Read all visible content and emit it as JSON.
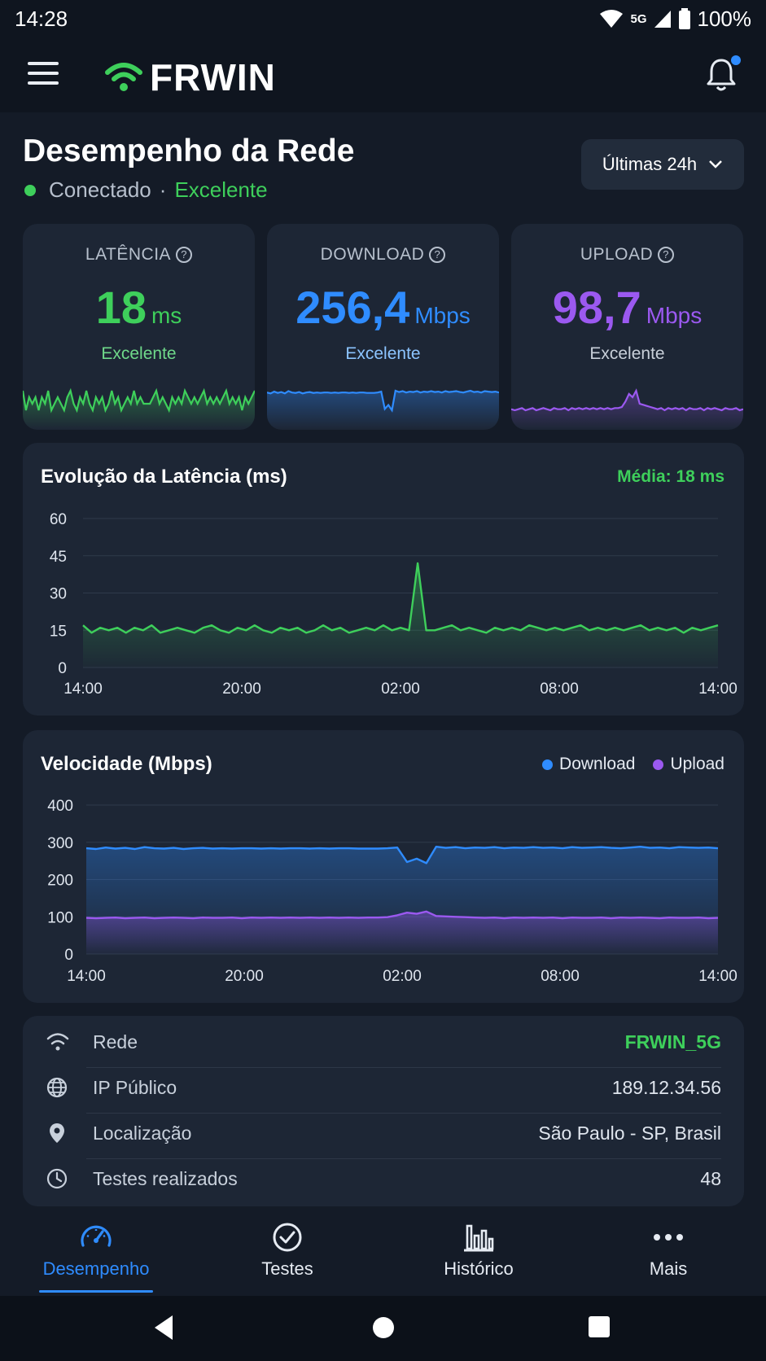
{
  "status_bar": {
    "time": "14:28",
    "network": "5G",
    "battery": "100%"
  },
  "app": {
    "name": "FRWIN"
  },
  "page": {
    "title": "Desempenho da Rede",
    "connection_status": "Conectado",
    "separator": "·",
    "connection_quality": "Excelente",
    "time_range": "Últimas 24h"
  },
  "metrics": [
    {
      "label": "LATÊNCIA",
      "value": "18",
      "unit": "ms",
      "quality": "Excelente",
      "color": "#3ecf5b"
    },
    {
      "label": "DOWNLOAD",
      "value": "256,4",
      "unit": "Mbps",
      "quality": "Excelente",
      "color": "#2f8cff"
    },
    {
      "label": "UPLOAD",
      "value": "98,7",
      "unit": "Mbps",
      "quality": "Excelente",
      "color": "#9b59f0"
    }
  ],
  "latency_chart": {
    "title": "Evolução da Latência (ms)",
    "average_label": "Média: 18 ms",
    "color": "#3ecf5b"
  },
  "speed_chart": {
    "title": "Velocidade (Mbps)",
    "legend_download": "Download",
    "legend_upload": "Upload",
    "download_color": "#2f8cff",
    "upload_color": "#9b59f0"
  },
  "chart_data": [
    {
      "type": "area",
      "title": "Evolução da Latência (ms)",
      "x_ticks": [
        "14:00",
        "20:00",
        "02:00",
        "08:00",
        "14:00"
      ],
      "y_ticks": [
        0,
        15,
        30,
        45,
        60
      ],
      "ylim": [
        0,
        60
      ],
      "grid": true,
      "series": [
        {
          "values": [
            17,
            14,
            16,
            15,
            16,
            14,
            16,
            15,
            17,
            14,
            15,
            16,
            15,
            14,
            16,
            17,
            15,
            14,
            16,
            15,
            17,
            15,
            14,
            16,
            15,
            16,
            14,
            15,
            17,
            15,
            16,
            14,
            15,
            16,
            15,
            17,
            15,
            16,
            15,
            42,
            15,
            15,
            16,
            17,
            15,
            16,
            15,
            14,
            16,
            15,
            16,
            15,
            17,
            16,
            15,
            16,
            15,
            16,
            17,
            15,
            16,
            15,
            16,
            15,
            16,
            17,
            15,
            16,
            15,
            16,
            14,
            16,
            15,
            16,
            17
          ]
        }
      ]
    },
    {
      "type": "area",
      "title": "Velocidade (Mbps)",
      "x_ticks": [
        "14:00",
        "20:00",
        "02:00",
        "08:00",
        "14:00"
      ],
      "y_ticks": [
        0,
        100,
        200,
        300,
        400
      ],
      "ylim": [
        0,
        400
      ],
      "grid": true,
      "series": [
        {
          "name": "Download",
          "values": [
            284,
            282,
            286,
            283,
            285,
            282,
            287,
            284,
            283,
            285,
            282,
            284,
            285,
            283,
            284,
            283,
            284,
            284,
            283,
            284,
            283,
            284,
            284,
            283,
            284,
            283,
            284,
            284,
            283,
            283,
            283,
            284,
            286,
            247,
            256,
            244,
            288,
            285,
            287,
            284,
            286,
            285,
            287,
            284,
            286,
            285,
            287,
            285,
            286,
            284,
            287,
            285,
            286,
            287,
            285,
            284,
            286,
            288,
            285,
            286,
            284,
            287,
            286,
            285,
            286,
            284
          ]
        },
        {
          "name": "Upload",
          "values": [
            97,
            96,
            97,
            98,
            96,
            97,
            98,
            96,
            97,
            98,
            97,
            96,
            98,
            97,
            97,
            98,
            96,
            98,
            97,
            98,
            97,
            98,
            97,
            98,
            97,
            98,
            97,
            98,
            97,
            98,
            98,
            99,
            104,
            111,
            108,
            114,
            102,
            101,
            100,
            99,
            98,
            97,
            98,
            96,
            98,
            97,
            98,
            97,
            98,
            96,
            98,
            97,
            97,
            98,
            96,
            98,
            97,
            98,
            97,
            96,
            98,
            97,
            97,
            98,
            96,
            97
          ]
        }
      ]
    }
  ],
  "info": {
    "rows": [
      {
        "label": "Rede",
        "value": "FRWIN_5G",
        "icon": "wifi-icon"
      },
      {
        "label": "IP Público",
        "value": "189.12.34.56",
        "icon": "globe-icon"
      },
      {
        "label": "Localização",
        "value": "São Paulo - SP, Brasil",
        "icon": "location-pin-icon"
      },
      {
        "label": "Testes realizados",
        "value": "48",
        "icon": "clock-icon"
      }
    ]
  },
  "nav": {
    "items": [
      {
        "label": "Desempenho",
        "icon": "speedometer-icon",
        "active": true
      },
      {
        "label": "Testes",
        "icon": "check-circle-icon",
        "active": false
      },
      {
        "label": "Histórico",
        "icon": "bar-chart-icon",
        "active": false
      },
      {
        "label": "Mais",
        "icon": "more-dots-icon",
        "active": false
      }
    ]
  }
}
